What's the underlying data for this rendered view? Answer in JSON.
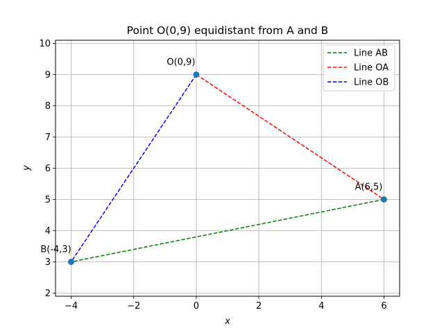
{
  "chart_data": {
    "type": "line",
    "title": "Point O(0,9) equidistant from A and B",
    "xlabel": "x",
    "ylabel": "y",
    "xlim": [
      -4.5,
      6.5
    ],
    "ylim": [
      1.9,
      10.1
    ],
    "xticks": [
      -4,
      -2,
      0,
      2,
      4,
      6
    ],
    "xtick_labels": [
      "−4",
      "−2",
      "0",
      "2",
      "4",
      "6"
    ],
    "yticks": [
      2,
      3,
      4,
      5,
      6,
      7,
      8,
      9,
      10
    ],
    "ytick_labels": [
      "2",
      "3",
      "4",
      "5",
      "6",
      "7",
      "8",
      "9",
      "10"
    ],
    "grid": true,
    "legend_position": "top-right",
    "series": [
      {
        "name": "Line AB",
        "color": "#008000",
        "style": "dashed",
        "x": [
          6,
          -4
        ],
        "y": [
          5,
          3
        ]
      },
      {
        "name": "Line OA",
        "color": "#ff0000",
        "style": "dashed",
        "x": [
          0,
          6
        ],
        "y": [
          9,
          5
        ]
      },
      {
        "name": "Line OB",
        "color": "#0000ff",
        "style": "dashed",
        "x": [
          0,
          -4
        ],
        "y": [
          9,
          3
        ]
      }
    ],
    "points": [
      {
        "label": "O(0,9)",
        "x": 0,
        "y": 9
      },
      {
        "label": "A(6,5)",
        "x": 6,
        "y": 5
      },
      {
        "label": "B(-4,3)",
        "x": -4,
        "y": 3
      }
    ],
    "point_color": "#1f77b4"
  }
}
